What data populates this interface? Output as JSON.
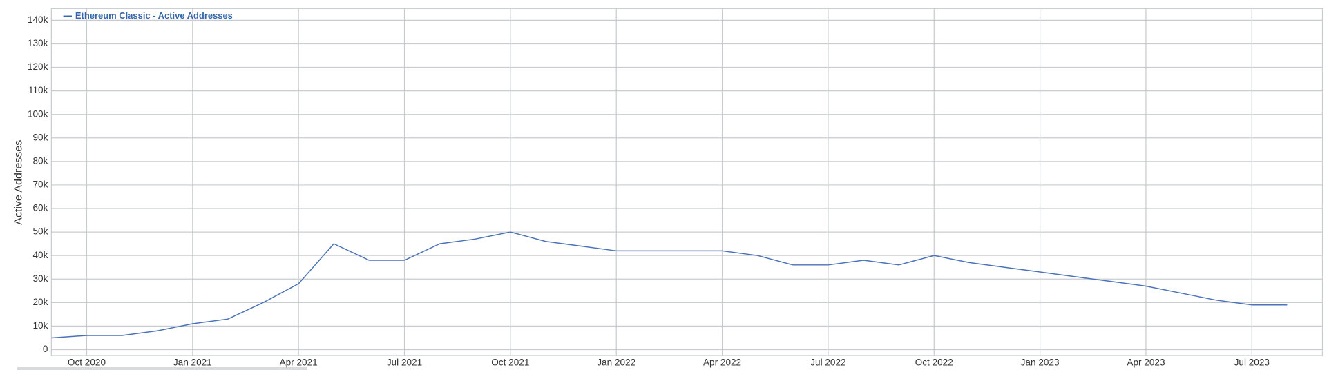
{
  "chart_data": {
    "type": "line",
    "legend": "Ethereum Classic - Active Addresses",
    "y_label": "Active Addresses",
    "x": [
      "2020-09",
      "2020-10",
      "2020-11",
      "2020-12",
      "2021-01",
      "2021-02",
      "2021-03",
      "2021-04",
      "2021-05",
      "2021-06",
      "2021-07",
      "2021-08",
      "2021-09",
      "2021-10",
      "2021-11",
      "2021-12",
      "2022-01",
      "2022-02",
      "2022-03",
      "2022-04",
      "2022-05",
      "2022-06",
      "2022-07",
      "2022-08",
      "2022-09",
      "2022-10",
      "2022-11",
      "2022-12",
      "2023-01",
      "2023-02",
      "2023-03",
      "2023-04",
      "2023-05",
      "2023-06",
      "2023-07",
      "2023-08"
    ],
    "series": [
      {
        "name": "Ethereum Classic - Active Addresses",
        "color": "#4a72b8",
        "values": [
          5000,
          6000,
          6000,
          8000,
          11000,
          13000,
          20000,
          28000,
          45000,
          38000,
          38000,
          45000,
          47000,
          50000,
          46000,
          44000,
          42000,
          42000,
          42000,
          42000,
          40000,
          36000,
          36000,
          38000,
          36000,
          40000,
          37000,
          35000,
          33000,
          31000,
          29000,
          27000,
          24000,
          21000,
          19000,
          19000
        ]
      }
    ],
    "xlim": [
      "2020-09",
      "2023-09"
    ],
    "xticks": [
      {
        "value": "2020-10",
        "label": "Oct 2020"
      },
      {
        "value": "2021-01",
        "label": "Jan 2021"
      },
      {
        "value": "2021-04",
        "label": "Apr 2021"
      },
      {
        "value": "2021-07",
        "label": "Jul 2021"
      },
      {
        "value": "2021-10",
        "label": "Oct 2021"
      },
      {
        "value": "2022-01",
        "label": "Jan 2022"
      },
      {
        "value": "2022-04",
        "label": "Apr 2022"
      },
      {
        "value": "2022-07",
        "label": "Jul 2022"
      },
      {
        "value": "2022-10",
        "label": "Oct 2022"
      },
      {
        "value": "2023-01",
        "label": "Jan 2023"
      },
      {
        "value": "2023-04",
        "label": "Apr 2023"
      },
      {
        "value": "2023-07",
        "label": "Jul 2023"
      }
    ],
    "ylim": [
      -2500,
      145000
    ],
    "yticks": [
      0,
      {
        "value": 10000,
        "label": "10k"
      },
      {
        "value": 20000,
        "label": "20k"
      },
      {
        "value": 30000,
        "label": "30k"
      },
      {
        "value": 40000,
        "label": "40k"
      },
      {
        "value": 50000,
        "label": "50k"
      },
      {
        "value": 60000,
        "label": "60k"
      },
      {
        "value": 70000,
        "label": "70k"
      },
      {
        "value": 80000,
        "label": "80k"
      },
      {
        "value": 90000,
        "label": "90k"
      },
      {
        "value": 100000,
        "label": "100k"
      },
      {
        "value": 110000,
        "label": "110k"
      },
      {
        "value": 120000,
        "label": "120k"
      },
      {
        "value": 130000,
        "label": "130k"
      },
      {
        "value": 140000,
        "label": "140k"
      }
    ],
    "grid": true
  }
}
